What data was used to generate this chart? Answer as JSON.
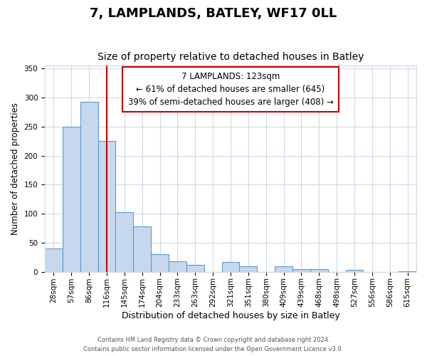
{
  "title": "7, LAMPLANDS, BATLEY, WF17 0LL",
  "subtitle": "Size of property relative to detached houses in Batley",
  "xlabel": "Distribution of detached houses by size in Batley",
  "ylabel": "Number of detached properties",
  "categories": [
    "28sqm",
    "57sqm",
    "86sqm",
    "116sqm",
    "145sqm",
    "174sqm",
    "204sqm",
    "233sqm",
    "263sqm",
    "292sqm",
    "321sqm",
    "351sqm",
    "380sqm",
    "409sqm",
    "439sqm",
    "468sqm",
    "498sqm",
    "527sqm",
    "556sqm",
    "586sqm",
    "615sqm"
  ],
  "values": [
    40,
    250,
    293,
    225,
    103,
    78,
    30,
    18,
    12,
    0,
    17,
    10,
    0,
    9,
    4,
    4,
    0,
    3,
    0,
    0,
    1
  ],
  "bar_color": "#c5d8ed",
  "bar_edge_color": "#5b9bd5",
  "bar_linewidth": 0.8,
  "red_line_x": 3.0,
  "annotation_text": "7 LAMPLANDS: 123sqm\n← 61% of detached houses are smaller (645)\n39% of semi-detached houses are larger (408) →",
  "annotation_box_color": "#ffffff",
  "annotation_box_edge": "#cc0000",
  "red_line_color": "#cc0000",
  "ylim": [
    0,
    355
  ],
  "yticks": [
    0,
    50,
    100,
    150,
    200,
    250,
    300,
    350
  ],
  "title_fontsize": 13,
  "subtitle_fontsize": 10,
  "xlabel_fontsize": 9,
  "ylabel_fontsize": 8.5,
  "tick_fontsize": 7.5,
  "annotation_fontsize": 8.5,
  "footer_line1": "Contains HM Land Registry data © Crown copyright and database right 2024.",
  "footer_line2": "Contains public sector information licensed under the Open Government Licence v3.0.",
  "background_color": "#ffffff",
  "grid_color": "#d0d8e8"
}
